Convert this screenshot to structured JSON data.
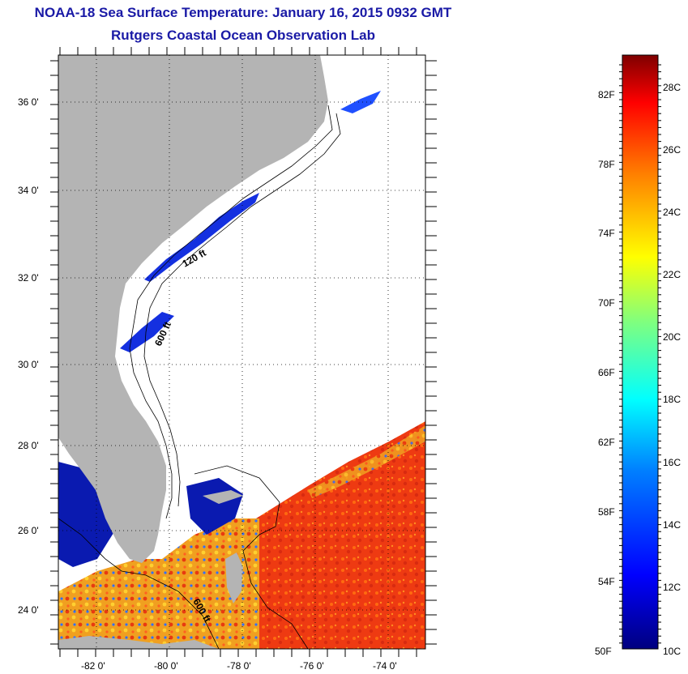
{
  "header": {
    "title": "NOAA-18 Sea Surface Temperature:  January 16, 2015 0932 GMT",
    "subtitle": "Rutgers Coastal Ocean Observation Lab"
  },
  "map": {
    "lat_labels": [
      "36 0'",
      "34 0'",
      "32 0'",
      "30 0'",
      "28 0'",
      "26 0'",
      "24 0'"
    ],
    "lon_labels": [
      "-82 0'",
      "-80 0'",
      "-78 0'",
      "-76 0'",
      "-74 0'"
    ],
    "isobath_labels": [
      "120 ft",
      "600 ft",
      "600 ft"
    ],
    "colors": {
      "land": "#b4b4b4",
      "cloud": "#ffffff"
    }
  },
  "colorbar": {
    "f_labels": [
      "82F",
      "78F",
      "74F",
      "70F",
      "66F",
      "62F",
      "58F",
      "54F",
      "50F"
    ],
    "c_labels": [
      "28C",
      "26C",
      "24C",
      "22C",
      "20C",
      "18C",
      "16C",
      "14C",
      "12C",
      "10C"
    ],
    "stops": [
      "#00007f",
      "#0000ff",
      "#007fff",
      "#00ffff",
      "#7fff7f",
      "#ffff00",
      "#ff7f00",
      "#ff0000",
      "#7f0000"
    ]
  }
}
